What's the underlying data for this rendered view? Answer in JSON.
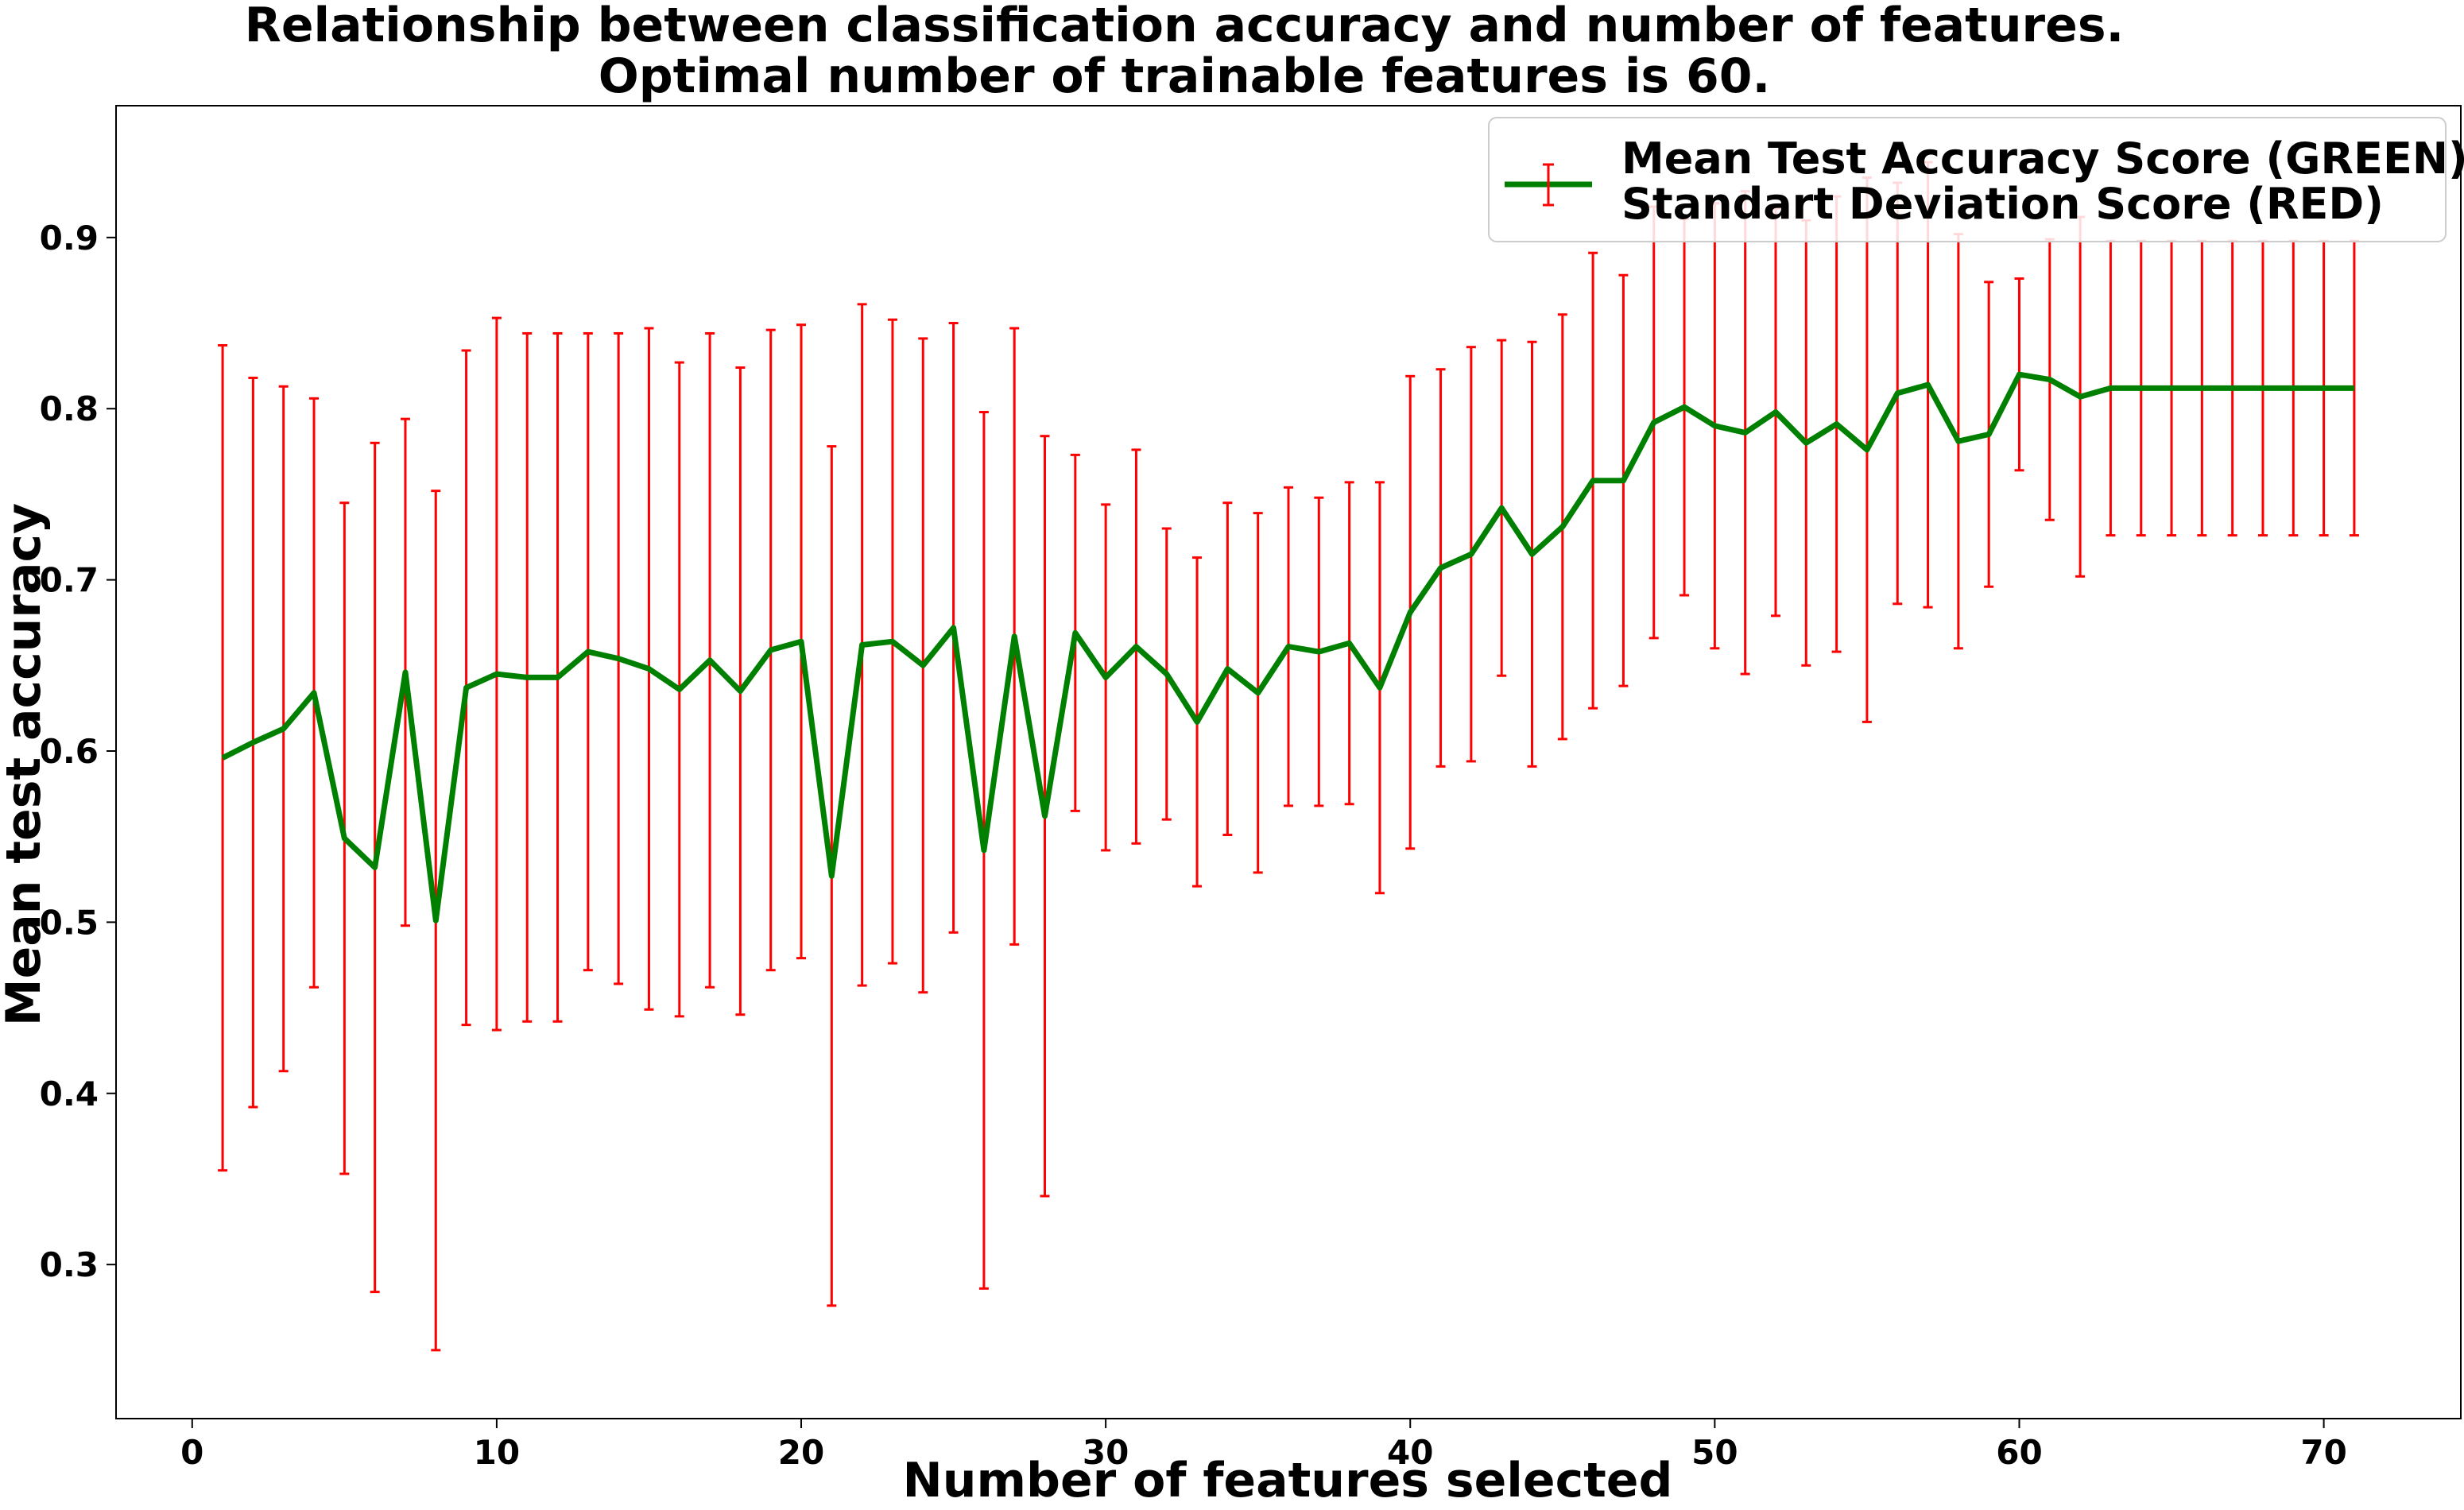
{
  "chart_data": {
    "type": "line",
    "title": [
      "Relationship between classification accuracy and number of features.",
      "Optimal number of trainable features is 60."
    ],
    "xlabel": "Number of features selected",
    "ylabel": "Mean test accuracy",
    "xlim": [
      -2.5,
      74.5
    ],
    "ylim": [
      0.21,
      0.977
    ],
    "xticks": [
      0,
      10,
      20,
      30,
      40,
      50,
      60,
      70
    ],
    "yticks": [
      0.3,
      0.4,
      0.5,
      0.6,
      0.7,
      0.8,
      0.9
    ],
    "grid": false,
    "legend_position": "upper right",
    "legend": [
      "Mean Test Accuracy Score (GREEN)",
      "Standart Deviation Score (RED)"
    ],
    "colors": {
      "line": "#008000",
      "errorbar": "#ff0000"
    },
    "series": [
      {
        "x": [
          1,
          2,
          3,
          4,
          5,
          6,
          7,
          8,
          9,
          10,
          11,
          12,
          13,
          14,
          15,
          16,
          17,
          18,
          19,
          20,
          21,
          22,
          23,
          24,
          25,
          26,
          27,
          28,
          29,
          30,
          31,
          32,
          33,
          34,
          35,
          36,
          37,
          38,
          39,
          40,
          41,
          42,
          43,
          44,
          45,
          46,
          47,
          48,
          49,
          50,
          51,
          52,
          53,
          54,
          55,
          56,
          57,
          58,
          59,
          60,
          61,
          62,
          63,
          64,
          65,
          66,
          67,
          68,
          69,
          70,
          71
        ],
        "values": [
          0.596,
          0.605,
          0.613,
          0.634,
          0.549,
          0.532,
          0.646,
          0.501,
          0.637,
          0.645,
          0.643,
          0.643,
          0.658,
          0.654,
          0.648,
          0.636,
          0.653,
          0.635,
          0.659,
          0.664,
          0.527,
          0.662,
          0.664,
          0.65,
          0.672,
          0.542,
          0.667,
          0.562,
          0.669,
          0.643,
          0.661,
          0.645,
          0.617,
          0.648,
          0.634,
          0.661,
          0.658,
          0.663,
          0.637,
          0.681,
          0.707,
          0.715,
          0.742,
          0.715,
          0.731,
          0.758,
          0.758,
          0.792,
          0.801,
          0.79,
          0.786,
          0.798,
          0.78,
          0.791,
          0.776,
          0.809,
          0.814,
          0.781,
          0.785,
          0.82,
          0.817,
          0.807,
          0.812,
          0.812,
          0.812,
          0.812,
          0.812,
          0.812,
          0.812,
          0.812,
          0.812
        ],
        "errors": [
          0.241,
          0.213,
          0.2,
          0.172,
          0.196,
          0.248,
          0.148,
          0.251,
          0.197,
          0.208,
          0.201,
          0.201,
          0.186,
          0.19,
          0.199,
          0.191,
          0.191,
          0.189,
          0.187,
          0.185,
          0.251,
          0.199,
          0.188,
          0.191,
          0.178,
          0.256,
          0.18,
          0.222,
          0.104,
          0.101,
          0.115,
          0.085,
          0.096,
          0.097,
          0.105,
          0.093,
          0.09,
          0.094,
          0.12,
          0.138,
          0.116,
          0.121,
          0.098,
          0.124,
          0.124,
          0.133,
          0.12,
          0.126,
          0.11,
          0.13,
          0.141,
          0.119,
          0.13,
          0.133,
          0.159,
          0.123,
          0.13,
          0.121,
          0.089,
          0.056,
          0.082,
          0.105,
          0.086,
          0.086,
          0.086,
          0.086,
          0.086,
          0.086,
          0.086,
          0.086,
          0.086
        ]
      }
    ]
  }
}
